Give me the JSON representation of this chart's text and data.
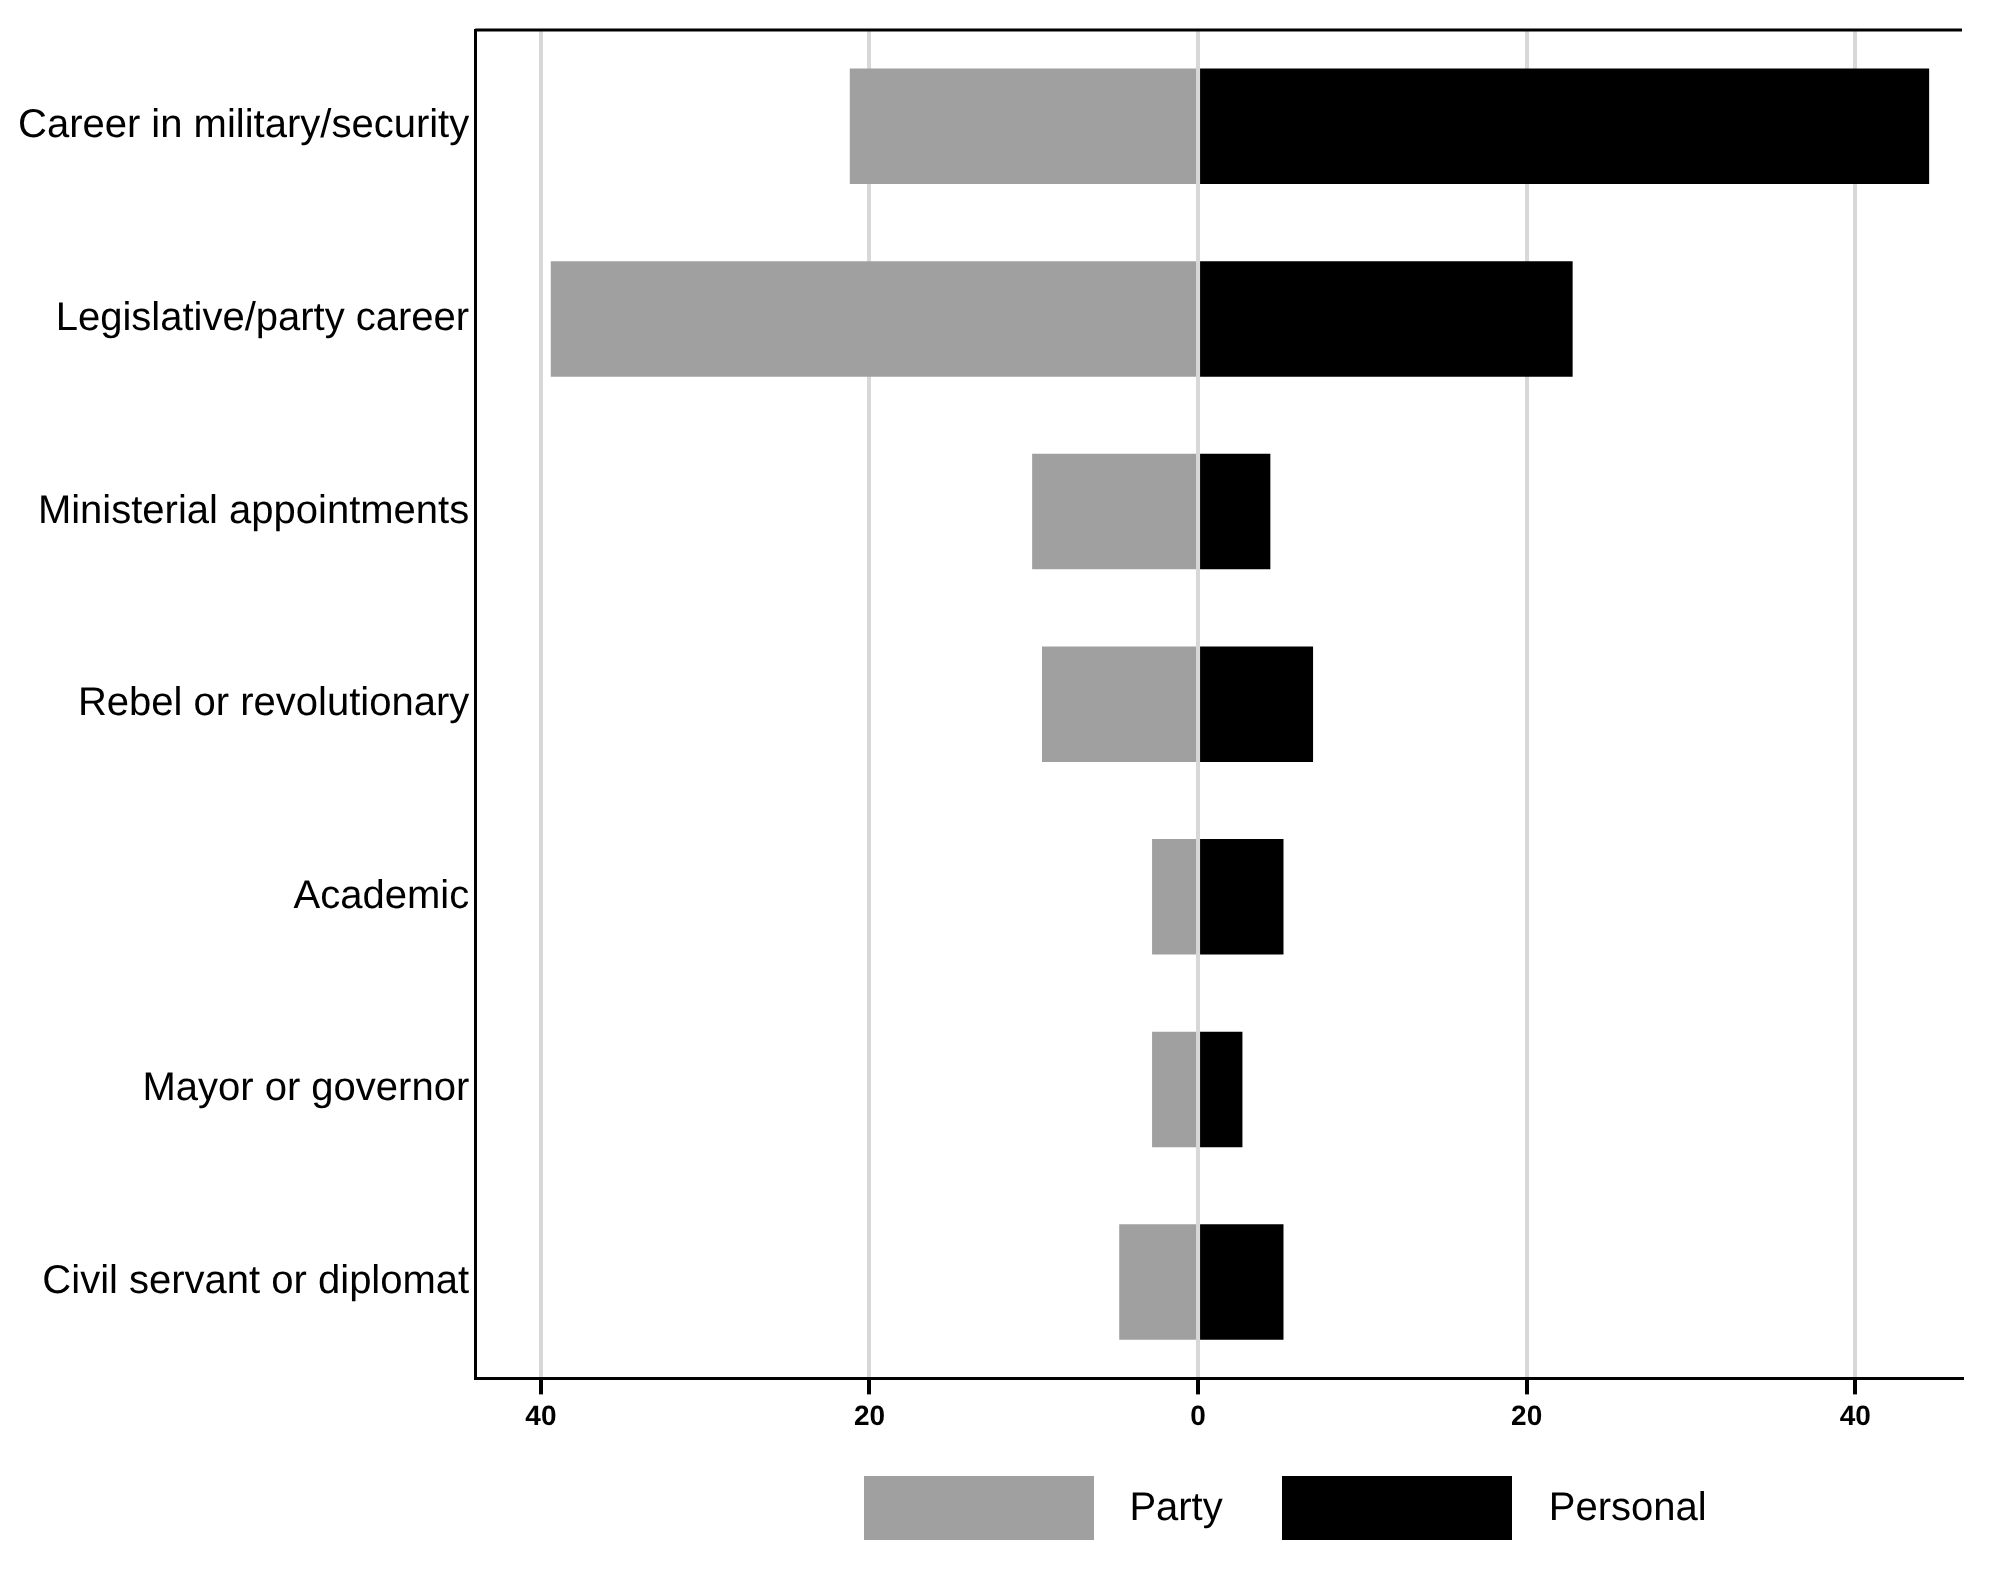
{
  "chart_data": {
    "type": "bar",
    "orientation": "horizontal",
    "stacked": true,
    "categories": [
      "Career in military/security",
      "Legislative/party career",
      "Ministerial appointments",
      "Rebel or revolutionary",
      "Academic",
      "Mayor or governor",
      "Civil servant or diplomat"
    ],
    "series": [
      {
        "name": "Party",
        "color": "#a0a0a0",
        "values": [
          -21.2,
          -39.4,
          -10.1,
          -9.5,
          -2.8,
          -2.8,
          -4.8
        ]
      },
      {
        "name": "Personal",
        "color": "#000000",
        "values": [
          44.5,
          22.8,
          4.4,
          7.0,
          5.2,
          2.7,
          5.2
        ]
      }
    ],
    "xlim": [
      -44,
      46.5
    ],
    "xticks": [
      {
        "value": -40,
        "label": "40"
      },
      {
        "value": -20,
        "label": "20"
      },
      0,
      20,
      40
    ],
    "grid": "x",
    "legend": "bottom"
  }
}
